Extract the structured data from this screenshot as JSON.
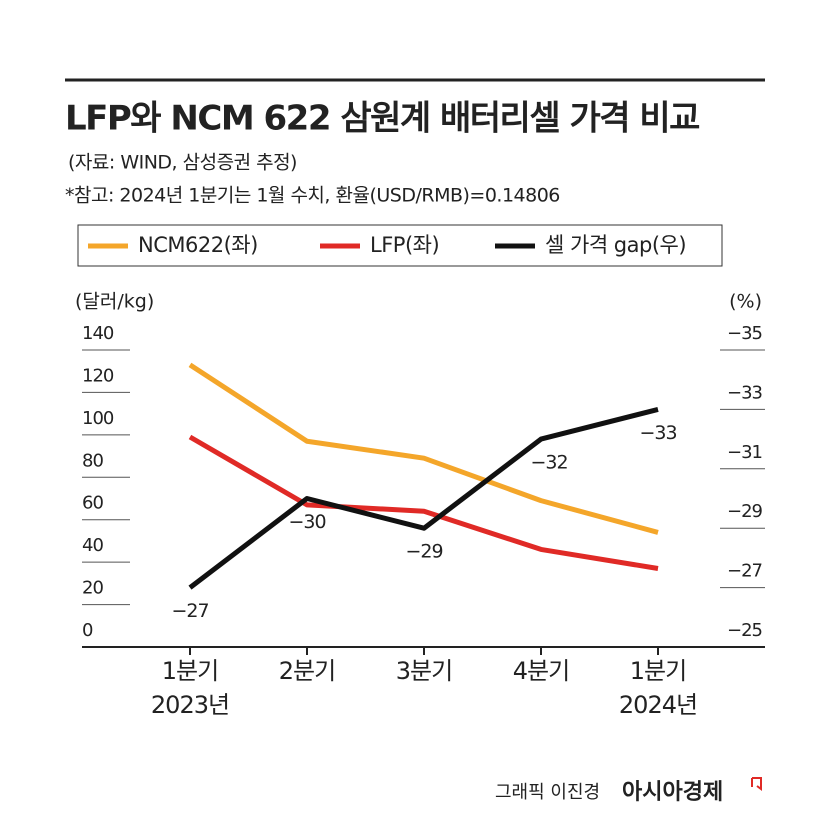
{
  "chart_data": {
    "type": "line",
    "title": "LFP와 NCM 622 삼원계 배터리셀 가격 비교",
    "subtitle": "(자료: WIND, 삼성증권 추정)",
    "note": "*참고: 2024년 1분기는 1월 수치, 환율(USD/RMB)=0.14806",
    "y_label": "(달러/kg)",
    "y2_label": "(%)",
    "categories": [
      "1분기\n2023년",
      "2분기",
      "3분기",
      "4분기",
      "1분기\n2024년"
    ],
    "series": [
      {
        "name": "NCM622(좌)",
        "color": "#f4a62a",
        "values": [
          133,
          97,
          89,
          69,
          54
        ]
      },
      {
        "name": "LFP(좌)",
        "color": "#e02a26",
        "values": [
          99,
          67,
          64,
          46,
          37
        ]
      },
      {
        "name": "셀 가격 gap(우)",
        "color": "#111111",
        "axis": "y2",
        "values": [
          -27,
          -30,
          -29,
          -32,
          -33
        ],
        "value_labels": [
          "−27",
          "−30",
          "−29",
          "−32",
          "−33"
        ]
      }
    ],
    "ylim": [
      0,
      140
    ],
    "yticks": [
      0,
      20,
      40,
      60,
      80,
      100,
      120,
      140
    ],
    "y2lim": [
      -25,
      -35
    ],
    "y2ticks": [
      {
        "value": -25,
        "label": "−25"
      },
      {
        "value": -27,
        "label": "−27"
      },
      {
        "value": -29,
        "label": "−29"
      },
      {
        "value": -31,
        "label": "−31"
      },
      {
        "value": -33,
        "label": "−33"
      },
      {
        "value": -35,
        "label": "−35"
      }
    ],
    "credit": "그래픽 이진경",
    "publisher": "아시아경제"
  }
}
